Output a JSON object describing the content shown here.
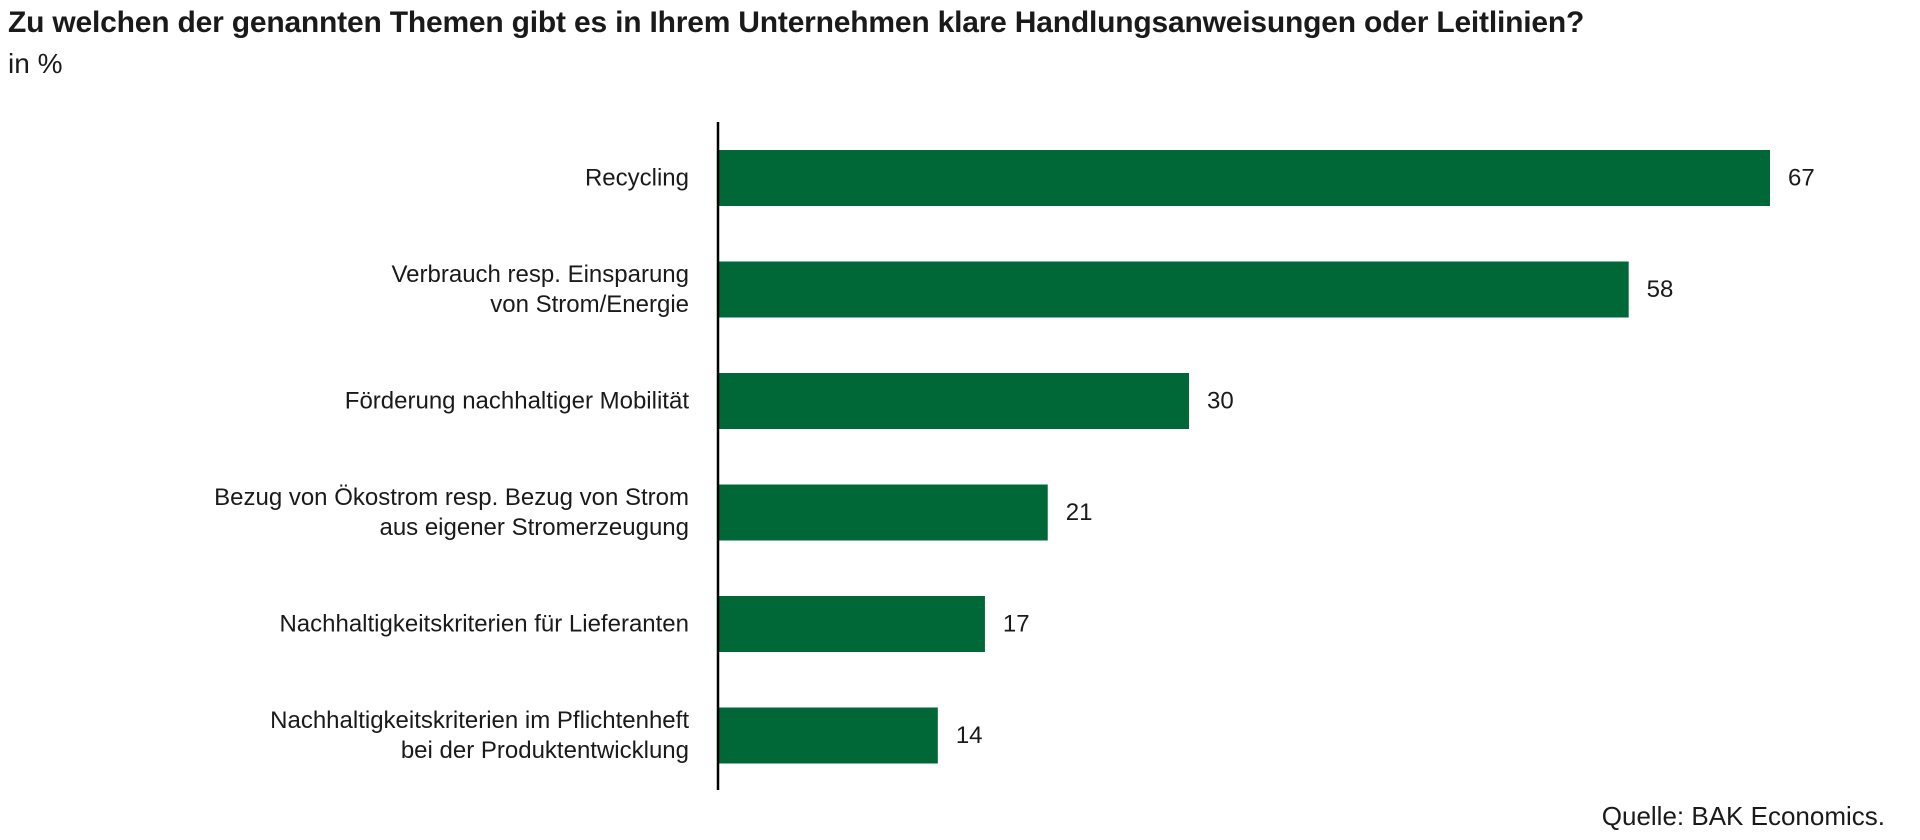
{
  "chart_data": {
    "type": "bar",
    "orientation": "horizontal",
    "title": "Zu welchen der genannten Themen gibt es in Ihrem Unternehmen klare Handlungsanweisungen oder Leitlinien?",
    "subtitle": "in %",
    "categories": [
      "Recycling",
      "Verbrauch resp. Einsparung von Strom/Energie",
      "Förderung nachhaltiger Mobilität",
      "Bezug von Ökostrom resp. Bezug von Strom aus eigener Stromerzeugung",
      "Nachhaltigkeitskriterien für Lieferanten",
      "Nachhaltigkeitskriterien im Pflichtenheft bei der Produktentwicklung"
    ],
    "category_lines": [
      [
        "Recycling"
      ],
      [
        "Verbrauch resp. Einsparung",
        "von Strom/Energie"
      ],
      [
        "Förderung nachhaltiger Mobilität"
      ],
      [
        "Bezug von Ökostrom resp. Bezug von Strom",
        "aus eigener Stromerzeugung"
      ],
      [
        "Nachhaltigkeitskriterien für Lieferanten"
      ],
      [
        "Nachhaltigkeitskriterien im Pflichtenheft",
        "bei der Produktentwicklung"
      ]
    ],
    "values": [
      67,
      58,
      30,
      21,
      17,
      14
    ],
    "value_labels": [
      "67",
      "58",
      "30",
      "21",
      "17",
      "14"
    ],
    "xlim": [
      0,
      67
    ],
    "grid": false,
    "legend": "none",
    "bar_color": "#006837",
    "source": "Quelle: BAK Economics."
  }
}
